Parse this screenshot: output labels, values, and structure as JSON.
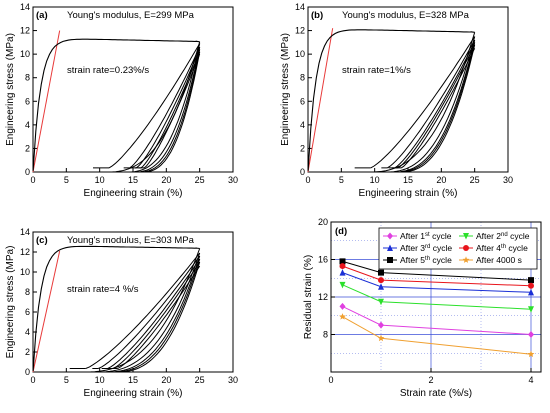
{
  "chart_data": [
    {
      "type": "line",
      "panel_label": "(a)",
      "modulus_label": "Young's modulus, E=299 MPa",
      "rate_label": "strain rate=0.23%/s",
      "xlabel": "Engineering strain (%)",
      "ylabel": "Engineering stress (MPa)",
      "xlim": [
        0,
        30
      ],
      "ylim": [
        0,
        14
      ],
      "xticks": [
        0,
        5,
        10,
        15,
        20,
        25,
        30
      ],
      "yticks": [
        0,
        2,
        4,
        6,
        8,
        10,
        12,
        14
      ],
      "modulus_line": {
        "x": [
          0,
          4.0
        ],
        "y": [
          0,
          12.0
        ]
      },
      "peak_stress": 11.3,
      "unload_strains": [
        11.0,
        14.1,
        15.1,
        15.8,
        16.3
      ],
      "reload_stresses": [
        10.9,
        10.6,
        10.4,
        10.2,
        10.0
      ]
    },
    {
      "type": "line",
      "panel_label": "(b)",
      "modulus_label": "Young's modulus, E=328 MPa",
      "rate_label": "strain rate=1%/s",
      "xlabel": "Engineering strain (%)",
      "ylabel": "Engineering stress (MPa)",
      "xlim": [
        0,
        30
      ],
      "ylim": [
        0,
        14
      ],
      "xticks": [
        0,
        5,
        10,
        15,
        20,
        25,
        30
      ],
      "yticks": [
        0,
        2,
        4,
        6,
        8,
        10,
        12,
        14
      ],
      "modulus_line": {
        "x": [
          0,
          3.7
        ],
        "y": [
          0,
          12.2
        ]
      },
      "peak_stress": 12.1,
      "unload_strains": [
        9.0,
        11.5,
        12.6,
        13.1,
        13.6
      ],
      "reload_stresses": [
        11.5,
        11.2,
        11.0,
        10.8,
        10.5
      ]
    },
    {
      "type": "line",
      "panel_label": "(c)",
      "modulus_label": "Young's modulus, E=303 MPa",
      "rate_label": "strain rate=4 %/s",
      "xlabel": "Engineering strain (%)",
      "ylabel": "Engineering stress (MPa)",
      "xlim": [
        0,
        30
      ],
      "ylim": [
        0,
        14
      ],
      "xticks": [
        0,
        5,
        10,
        15,
        20,
        25,
        30
      ],
      "yticks": [
        0,
        2,
        4,
        6,
        8,
        10,
        12,
        14
      ],
      "modulus_line": {
        "x": [
          0,
          4.0
        ],
        "y": [
          0,
          12.1
        ]
      },
      "peak_stress": 12.6,
      "unload_strains": [
        7.5,
        9.4,
        10.8,
        11.6,
        12.3
      ],
      "reload_stresses": [
        11.9,
        11.6,
        11.3,
        11.0,
        10.6
      ]
    },
    {
      "type": "line",
      "panel_label": "(d)",
      "xlabel": "Strain rate (%/s)",
      "ylabel": "Residual strain (%)",
      "xlim": [
        0,
        4.2
      ],
      "ylim": [
        4,
        20
      ],
      "xticks": [
        0,
        2,
        4
      ],
      "yticks": [
        8,
        12,
        16,
        20
      ],
      "x": [
        0.23,
        1,
        4
      ],
      "series": [
        {
          "name": "After 5th cycle",
          "sup": "th",
          "color": "#000000",
          "marker": "square",
          "values": [
            15.8,
            14.6,
            13.8
          ]
        },
        {
          "name": "After 4th cycle",
          "sup": "th",
          "color": "#e8141b",
          "marker": "circle",
          "values": [
            15.3,
            13.8,
            13.2
          ]
        },
        {
          "name": "After 3rd cycle",
          "sup": "rd",
          "color": "#1a2fd6",
          "marker": "triangle-up",
          "values": [
            14.6,
            13.1,
            12.5
          ]
        },
        {
          "name": "After 2nd cycle",
          "sup": "nd",
          "color": "#2be02b",
          "marker": "triangle-down",
          "values": [
            13.3,
            11.5,
            10.7
          ]
        },
        {
          "name": "After 1st cycle",
          "sup": "st",
          "color": "#e040e0",
          "marker": "diamond",
          "values": [
            11.0,
            9.0,
            8.0
          ]
        },
        {
          "name": "After 4000 s",
          "sup": "",
          "color": "#f0a030",
          "marker": "star",
          "values": [
            9.9,
            7.6,
            5.9
          ]
        }
      ],
      "legend": [
        {
          "prefix": "After 1",
          "sup": "st",
          "suffix": " cycle",
          "color": "#e040e0",
          "marker": "diamond"
        },
        {
          "prefix": "After 2",
          "sup": "nd",
          "suffix": " cycle",
          "color": "#2be02b",
          "marker": "triangle-down"
        },
        {
          "prefix": "After 3",
          "sup": "rd",
          "suffix": " cycle",
          "color": "#1a2fd6",
          "marker": "triangle-up"
        },
        {
          "prefix": "After 4",
          "sup": "th",
          "suffix": " cycle",
          "color": "#e8141b",
          "marker": "circle"
        },
        {
          "prefix": "After 5",
          "sup": "th",
          "suffix": " cycle",
          "color": "#000000",
          "marker": "square"
        },
        {
          "prefix": "After 4000 s",
          "sup": "",
          "suffix": "",
          "color": "#f0a030",
          "marker": "star"
        }
      ]
    }
  ]
}
